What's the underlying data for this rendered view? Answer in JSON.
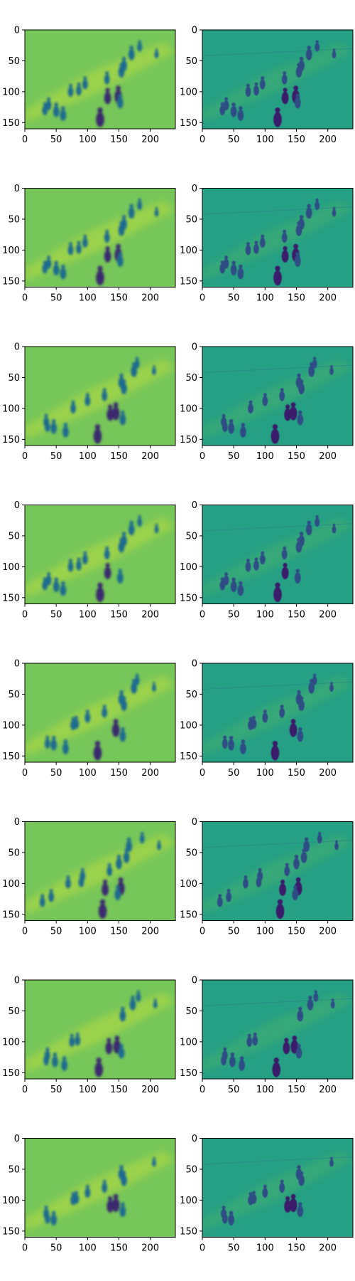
{
  "chart_data": {
    "type": "heatmap",
    "layout": "8 rows × 2 columns of image panels",
    "colormap": "viridis",
    "title": "",
    "xlabel": "",
    "ylabel": "",
    "image_width": 240,
    "image_height": 160,
    "xlim": [
      0,
      240
    ],
    "ylim": [
      160,
      0
    ],
    "xticks": [
      0,
      50,
      100,
      150,
      200
    ],
    "yticks": [
      0,
      50,
      100,
      150
    ],
    "grid": false,
    "legend": "none",
    "panel_styles": {
      "left": {
        "background": "#77c659",
        "blob": "#1f6b8f",
        "dark_blob": "#3b2a6e",
        "highlight": "#c6e13a"
      },
      "right": {
        "background": "#25a084",
        "blob": "#2d4e85",
        "dark_blob": "#3a1a6b",
        "highlight": "#b5de2b"
      }
    },
    "figures": [
      {
        "row": 1,
        "shift": 0,
        "missing": []
      },
      {
        "row": 2,
        "shift": 0,
        "missing": []
      },
      {
        "row": 3,
        "shift": 4,
        "missing": [
          6
        ]
      },
      {
        "row": 4,
        "shift": 0,
        "missing": [
          8
        ]
      },
      {
        "row": 5,
        "shift": 4,
        "missing": [
          9,
          10
        ]
      },
      {
        "row": 6,
        "shift": -4,
        "missing": [
          12,
          13
        ]
      },
      {
        "row": 7,
        "shift": 2,
        "missing": [
          3,
          4,
          5
        ]
      },
      {
        "row": 8,
        "shift": 4,
        "missing": [
          0,
          1,
          13,
          14
        ]
      }
    ]
  }
}
